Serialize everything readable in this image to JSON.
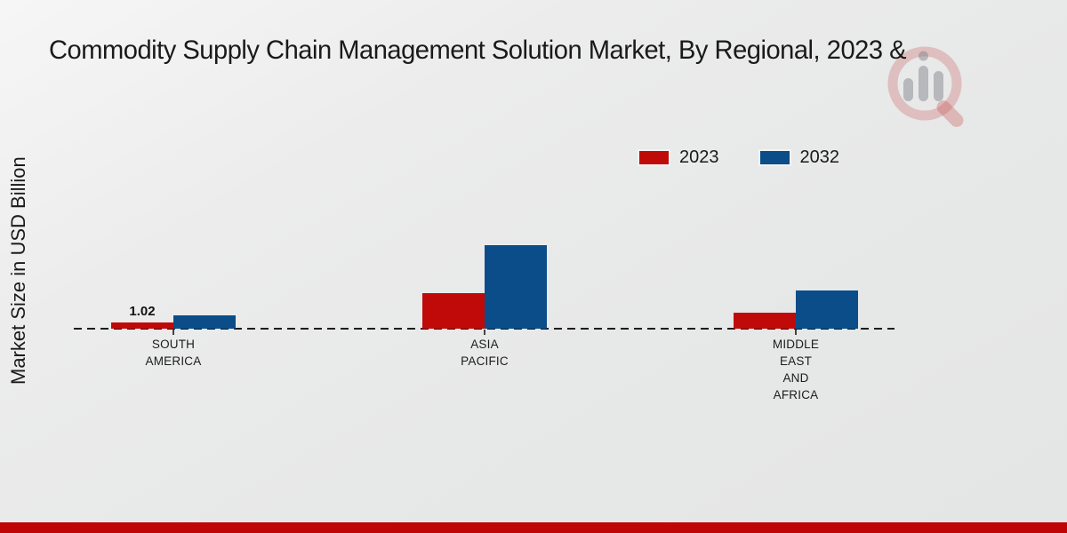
{
  "chart_data": {
    "type": "bar",
    "title": "Commodity Supply Chain Management Solution Market, By Regional, 2023 &",
    "ylabel": "Market Size in USD Billion",
    "xlabel": "",
    "categories": [
      "SOUTH AMERICA",
      "ASIA PACIFIC",
      "MIDDLE EAST AND AFRICA"
    ],
    "series": [
      {
        "name": "2023",
        "color": "#c00a0a",
        "values": [
          1.02,
          6.25,
          2.8
        ],
        "labels": [
          "1.02",
          "",
          ""
        ]
      },
      {
        "name": "2032",
        "color": "#0a4d88",
        "values": [
          2.35,
          14.7,
          6.7
        ],
        "labels": [
          "",
          "",
          ""
        ]
      }
    ],
    "baseline_value": 0,
    "baseline_style": "dashed",
    "gridlines": false,
    "legend_position": "top-right",
    "legend_labels": [
      "2023",
      "2032"
    ]
  },
  "colors": {
    "series_2023_red": "#c00a0a",
    "series_2032_blue": "#0a4d88",
    "footer_red": "#bf0505",
    "background_gray": "#e9eaea"
  },
  "icons": {
    "watermark": "magnifier-bar-chart-logo"
  }
}
